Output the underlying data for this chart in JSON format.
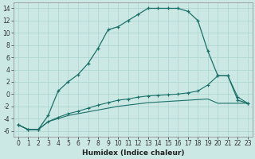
{
  "xlabel": "Humidex (Indice chaleur)",
  "background_color": "#cce8e5",
  "grid_color": "#aad4d0",
  "line_color": "#1a7068",
  "curve1_x": [
    0,
    1,
    2,
    3,
    4,
    5,
    6,
    7,
    8,
    9,
    10,
    11,
    12,
    13,
    14,
    15,
    16,
    17,
    18,
    19,
    20,
    21,
    22,
    23
  ],
  "curve1_y": [
    -5.0,
    -5.8,
    -5.8,
    -3.5,
    0.5,
    2.0,
    3.2,
    5.0,
    7.5,
    10.5,
    11.0,
    12.0,
    13.0,
    14.0,
    14.0,
    14.0,
    14.0,
    13.5,
    12.0,
    7.0,
    3.0,
    3.0,
    -1.0,
    -1.5
  ],
  "curve2_x": [
    0,
    1,
    2,
    3,
    4,
    5,
    6,
    7,
    8,
    9,
    10,
    11,
    12,
    13,
    14,
    15,
    16,
    17,
    18,
    19,
    20,
    21,
    22,
    23
  ],
  "curve2_y": [
    -5.0,
    -5.8,
    -5.8,
    -4.5,
    -3.8,
    -3.2,
    -2.8,
    -2.3,
    -1.8,
    -1.4,
    -1.0,
    -0.8,
    -0.5,
    -0.3,
    -0.2,
    -0.1,
    0.0,
    0.2,
    0.5,
    1.5,
    3.0,
    3.0,
    -0.5,
    -1.5
  ],
  "curve3_x": [
    0,
    1,
    2,
    3,
    4,
    5,
    6,
    7,
    8,
    9,
    10,
    11,
    12,
    13,
    14,
    15,
    16,
    17,
    18,
    19,
    20,
    21,
    22,
    23
  ],
  "curve3_y": [
    -5.0,
    -5.8,
    -5.8,
    -4.5,
    -4.0,
    -3.5,
    -3.2,
    -2.9,
    -2.6,
    -2.3,
    -2.0,
    -1.8,
    -1.6,
    -1.4,
    -1.3,
    -1.2,
    -1.1,
    -1.0,
    -0.9,
    -0.8,
    -1.5,
    -1.5,
    -1.5,
    -1.5
  ],
  "ylim": [
    -7,
    15
  ],
  "xlim": [
    -0.5,
    23.5
  ],
  "yticks": [
    -6,
    -4,
    -2,
    0,
    2,
    4,
    6,
    8,
    10,
    12,
    14
  ],
  "xticks": [
    0,
    1,
    2,
    3,
    4,
    5,
    6,
    7,
    8,
    9,
    10,
    11,
    12,
    13,
    14,
    15,
    16,
    17,
    18,
    19,
    20,
    21,
    22,
    23
  ],
  "xlabel_fontsize": 6.5,
  "tick_fontsize": 5.5
}
